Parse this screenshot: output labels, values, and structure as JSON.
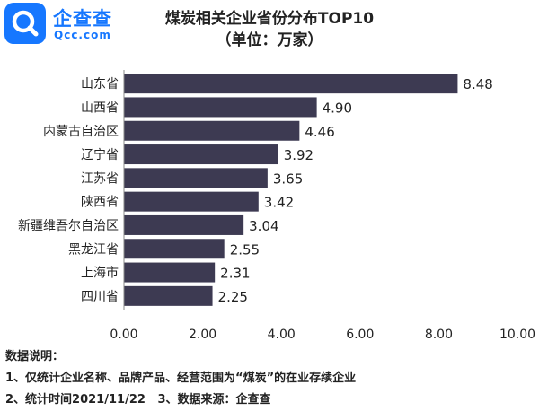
{
  "brand": {
    "name_cn": "企查查",
    "name_en": "Qcc.com",
    "color": "#1677ff"
  },
  "chart_data": {
    "type": "bar",
    "orientation": "horizontal",
    "title": "煤炭相关企业省份分布TOP10",
    "subtitle": "（单位：万家）",
    "categories": [
      "山东省",
      "山西省",
      "内蒙古自治区",
      "辽宁省",
      "江苏省",
      "陕西省",
      "新疆维吾尔自治区",
      "黑龙江省",
      "上海市",
      "四川省"
    ],
    "values": [
      8.48,
      4.9,
      4.46,
      3.92,
      3.65,
      3.42,
      3.04,
      2.55,
      2.31,
      2.25
    ],
    "value_labels": [
      "8.48",
      "4.90",
      "4.46",
      "3.92",
      "3.65",
      "3.42",
      "3.04",
      "2.55",
      "2.31",
      "2.25"
    ],
    "xlim": [
      0,
      10
    ],
    "x_ticks": [
      "0.00",
      "2.00",
      "4.00",
      "6.00",
      "8.00",
      "10.00"
    ],
    "bar_color": "#3d3a52",
    "grid": false
  },
  "notes": {
    "heading": "数据说明：",
    "line1": "1、仅统计企业名称、品牌产品、经营范围为“煤炭”的在业存续企业",
    "line2": "2、统计时间2021/11/22   3、数据来源：企查查"
  }
}
